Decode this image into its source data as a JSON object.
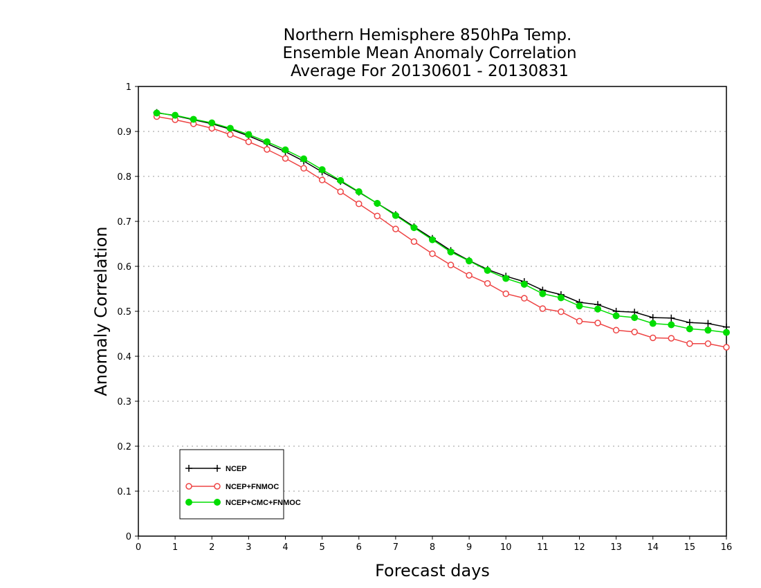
{
  "chart_data": {
    "type": "line",
    "title": [
      "Northern Hemisphere 850hPa Temp.",
      "Ensemble Mean Anomaly Correlation",
      "Average For 20130601 - 20130831"
    ],
    "xlabel": "Forecast days",
    "ylabel": "Anomaly Correlation",
    "xlim": [
      0,
      16
    ],
    "ylim": [
      0,
      1
    ],
    "x_ticks": [
      0,
      1,
      2,
      3,
      4,
      5,
      6,
      7,
      8,
      9,
      10,
      11,
      12,
      13,
      14,
      15,
      16
    ],
    "y_ticks": [
      0,
      0.1,
      0.2,
      0.3,
      0.4,
      0.5,
      0.6,
      0.7,
      0.8,
      0.9,
      1
    ],
    "y_tick_labels": [
      "0",
      "0.1",
      "0.2",
      "0.3",
      "0.4",
      "0.5",
      "0.6",
      "0.7",
      "0.8",
      "0.9",
      "1"
    ],
    "grid": "horizontal dotted",
    "legend_position": "bottom-left",
    "x": [
      0.5,
      1,
      1.5,
      2,
      2.5,
      3,
      3.5,
      4,
      4.5,
      5,
      5.5,
      6,
      6.5,
      7,
      7.5,
      8,
      8.5,
      9,
      9.5,
      10,
      10.5,
      11,
      11.5,
      12,
      12.5,
      13,
      13.5,
      14,
      14.5,
      15,
      15.5,
      16
    ],
    "series": [
      {
        "name": "NCEP",
        "color": "#000000",
        "marker": "plus",
        "values": [
          0.942,
          0.935,
          0.926,
          0.917,
          0.905,
          0.89,
          0.873,
          0.855,
          0.834,
          0.81,
          0.789,
          0.765,
          0.74,
          0.715,
          0.688,
          0.662,
          0.635,
          0.613,
          0.593,
          0.578,
          0.566,
          0.547,
          0.537,
          0.52,
          0.515,
          0.5,
          0.498,
          0.486,
          0.485,
          0.475,
          0.473,
          0.465
        ]
      },
      {
        "name": "NCEP+FNMOC",
        "color": "#ee4444",
        "marker": "open-circle",
        "values": [
          0.933,
          0.926,
          0.917,
          0.907,
          0.893,
          0.877,
          0.86,
          0.84,
          0.818,
          0.792,
          0.766,
          0.739,
          0.712,
          0.683,
          0.655,
          0.628,
          0.603,
          0.58,
          0.562,
          0.539,
          0.529,
          0.506,
          0.499,
          0.478,
          0.474,
          0.458,
          0.454,
          0.441,
          0.44,
          0.428,
          0.428,
          0.42
        ]
      },
      {
        "name": "NCEP+CMC+FNMOC",
        "color": "#00dd00",
        "marker": "filled-circle",
        "values": [
          0.941,
          0.936,
          0.927,
          0.919,
          0.907,
          0.893,
          0.877,
          0.859,
          0.839,
          0.815,
          0.791,
          0.766,
          0.74,
          0.713,
          0.686,
          0.659,
          0.632,
          0.612,
          0.591,
          0.573,
          0.56,
          0.539,
          0.53,
          0.512,
          0.505,
          0.49,
          0.486,
          0.473,
          0.47,
          0.461,
          0.458,
          0.453
        ]
      }
    ]
  }
}
